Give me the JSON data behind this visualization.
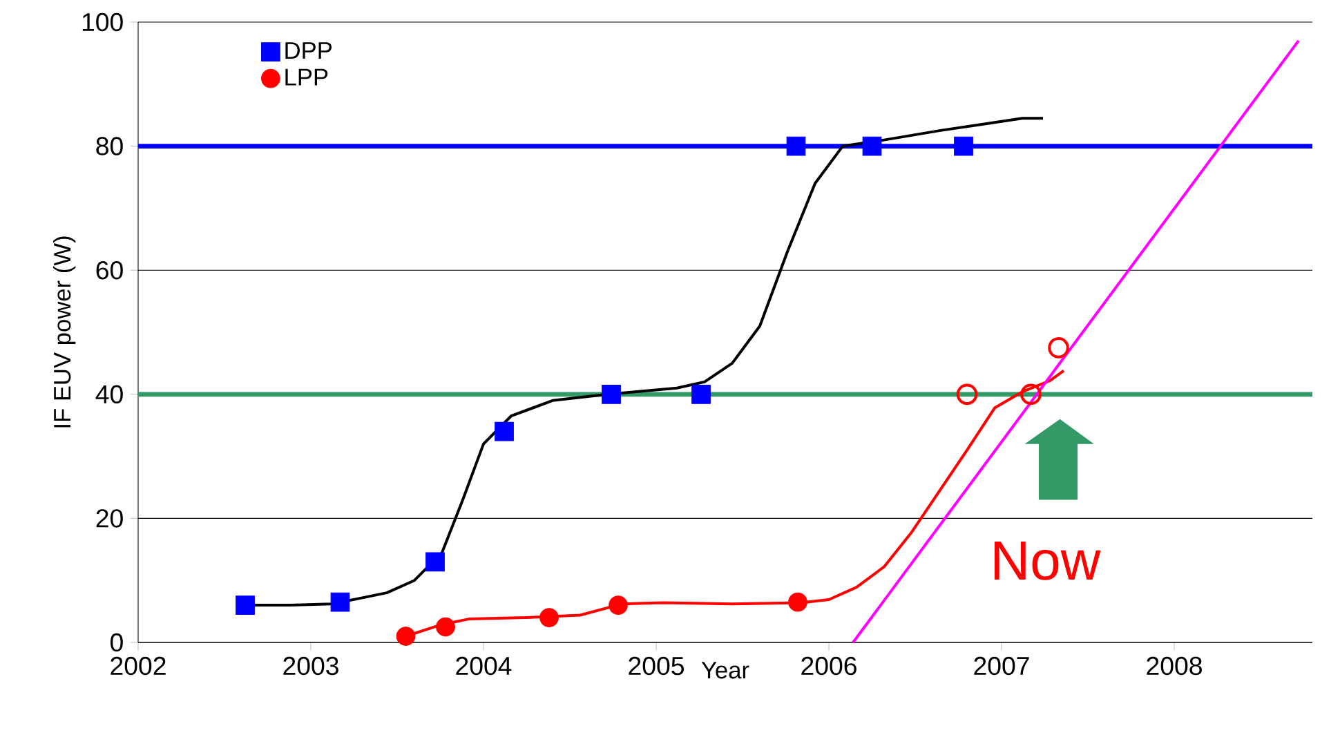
{
  "chart_data": {
    "type": "scatter",
    "xlabel": "Year",
    "ylabel": "IF EUV power (W)",
    "xlim": [
      2002,
      2008.8
    ],
    "ylim": [
      0,
      100
    ],
    "xticks": [
      2002,
      2003,
      2004,
      2005,
      2006,
      2007,
      2008
    ],
    "yticks": [
      0,
      20,
      40,
      60,
      80,
      100
    ],
    "grid": "y",
    "legend": "top left",
    "series": [
      {
        "name": "DPP",
        "color": "#0000ff",
        "marker": "square",
        "x": [
          2002.62,
          2003.17,
          2003.72,
          2004.12,
          2004.74,
          2005.26,
          2005.81,
          2006.25,
          2006.78
        ],
        "values": [
          6,
          6.5,
          13,
          34,
          40,
          40,
          80,
          80,
          80
        ]
      },
      {
        "name": "LPP",
        "color": "#ff0000",
        "marker": "circle",
        "x": [
          2003.55,
          2003.78,
          2004.38,
          2004.78,
          2005.82
        ],
        "values": [
          1,
          2.5,
          4,
          6,
          6.5
        ]
      },
      {
        "color": "#ff0000",
        "marker": "circle",
        "x": [
          2006.8,
          2007.17,
          2007.33
        ],
        "values": [
          40,
          40,
          47.5
        ]
      },
      {
        "type": "line",
        "color": "#000000",
        "marker": "none",
        "x": [
          2002.62,
          2002.88,
          2003.12,
          2003.44,
          2003.6,
          2003.76,
          2003.88,
          2004.0,
          2004.16,
          2004.4,
          2004.72,
          2005.12,
          2005.28,
          2005.44,
          2005.6,
          2005.76,
          2005.92,
          2006.08,
          2006.32,
          2006.64,
          2006.88,
          2007.12,
          2007.24
        ],
        "values": [
          6,
          6,
          6.2,
          8,
          10,
          14.5,
          23,
          32,
          36.5,
          39,
          40,
          41,
          42,
          45,
          51,
          63,
          74,
          80,
          81,
          82.5,
          83.5,
          84.5,
          84.5
        ]
      },
      {
        "type": "line",
        "color": "#ff0000",
        "marker": "none",
        "x": [
          2003.55,
          2003.76,
          2003.92,
          2004.24,
          2004.56,
          2004.8,
          2005.04,
          2005.44,
          2005.84,
          2006.0,
          2006.16,
          2006.32,
          2006.48,
          2006.64,
          2006.8,
          2006.96,
          2007.12,
          2007.28,
          2007.36
        ],
        "values": [
          1,
          2.9,
          3.8,
          4,
          4.4,
          6.2,
          6.4,
          6.2,
          6.4,
          6.9,
          8.9,
          12.2,
          17.8,
          24.4,
          31,
          37.8,
          40.4,
          42.2,
          43.8
        ]
      },
      {
        "type": "line",
        "color": "#ff00ff",
        "marker": "none",
        "x": [
          2006.14,
          2008.72
        ],
        "values": [
          0,
          97
        ]
      }
    ],
    "ref_lines": [
      {
        "axis": "y",
        "value": 80,
        "color": "#0000ff"
      },
      {
        "axis": "y",
        "value": 40,
        "color": "#339966"
      }
    ],
    "annotations": [
      "Now"
    ]
  }
}
